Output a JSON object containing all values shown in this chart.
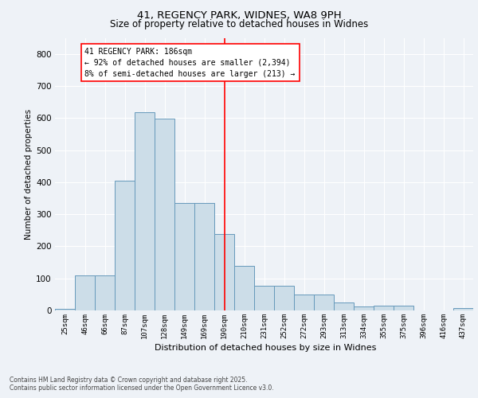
{
  "title_line1": "41, REGENCY PARK, WIDNES, WA8 9PH",
  "title_line2": "Size of property relative to detached houses in Widnes",
  "xlabel": "Distribution of detached houses by size in Widnes",
  "ylabel": "Number of detached properties",
  "bar_labels": [
    "25sqm",
    "46sqm",
    "66sqm",
    "87sqm",
    "107sqm",
    "128sqm",
    "149sqm",
    "169sqm",
    "190sqm",
    "210sqm",
    "231sqm",
    "252sqm",
    "272sqm",
    "293sqm",
    "313sqm",
    "334sqm",
    "355sqm",
    "375sqm",
    "396sqm",
    "416sqm",
    "437sqm"
  ],
  "bar_values": [
    5,
    109,
    109,
    404,
    619,
    598,
    334,
    334,
    238,
    140,
    78,
    78,
    50,
    50,
    25,
    12,
    15,
    15,
    0,
    0,
    7
  ],
  "bar_color": "#ccdde8",
  "bar_edge_color": "#6699bb",
  "vline_x_index": 8,
  "vline_color": "red",
  "annotation_text": "41 REGENCY PARK: 186sqm\n← 92% of detached houses are smaller (2,394)\n8% of semi-detached houses are larger (213) →",
  "ylim": [
    0,
    850
  ],
  "yticks": [
    0,
    100,
    200,
    300,
    400,
    500,
    600,
    700,
    800
  ],
  "background_color": "#eef2f7",
  "grid_color": "#ffffff",
  "footer_text": "Contains HM Land Registry data © Crown copyright and database right 2025.\nContains public sector information licensed under the Open Government Licence v3.0."
}
